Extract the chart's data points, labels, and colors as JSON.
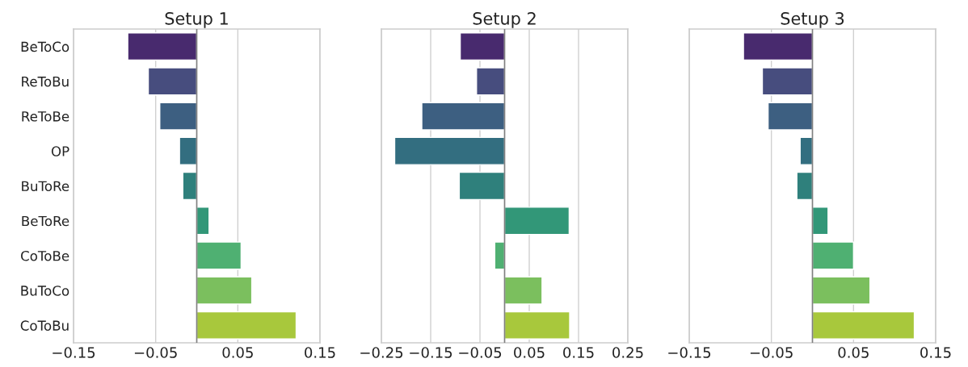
{
  "chart_data": [
    {
      "type": "bar",
      "orientation": "horizontal",
      "title": "Setup 1",
      "categories": [
        "BeToCo",
        "ReToBu",
        "ReToBe",
        "OP",
        "BuToRe",
        "BeToRe",
        "CoToBe",
        "BuToCo",
        "CoToBu"
      ],
      "values": [
        -0.084,
        -0.059,
        -0.045,
        -0.021,
        -0.017,
        0.015,
        0.054,
        0.067,
        0.121
      ],
      "colors": [
        "#482a6e",
        "#474d7e",
        "#3d5f81",
        "#336e80",
        "#2f807c",
        "#329778",
        "#4fb072",
        "#7bbf5e",
        "#a8c83c"
      ],
      "xlim": [
        -0.15,
        0.15
      ],
      "xticks": [
        -0.15,
        -0.05,
        0.05,
        0.15
      ],
      "grid": "x",
      "ref_lines": [
        {
          "axis": "x",
          "value": 0,
          "color": "#808080"
        }
      ]
    },
    {
      "type": "bar",
      "orientation": "horizontal",
      "title": "Setup 2",
      "categories": [
        null,
        null,
        null,
        null,
        null,
        null,
        null,
        null,
        null
      ],
      "values": [
        -0.09,
        -0.057,
        -0.168,
        -0.223,
        -0.092,
        0.131,
        -0.02,
        0.076,
        0.132
      ],
      "colors": [
        "#482a6e",
        "#474d7e",
        "#3d5f81",
        "#336e80",
        "#2f807c",
        "#329778",
        "#4fb072",
        "#7bbf5e",
        "#a8c83c"
      ],
      "xlim": [
        -0.25,
        0.25
      ],
      "xticks": [
        -0.25,
        -0.15,
        -0.05,
        0.05,
        0.15,
        0.25
      ],
      "grid": "x",
      "tick_labels": "x",
      "ref_lines": [
        {
          "axis": "x",
          "value": 0,
          "color": "#808080"
        }
      ]
    },
    {
      "type": "bar",
      "orientation": "horizontal",
      "title": "Setup 3",
      "categories": [
        null,
        null,
        null,
        null,
        null,
        null,
        null,
        null,
        null
      ],
      "values": [
        -0.084,
        -0.061,
        -0.054,
        -0.015,
        -0.019,
        0.019,
        0.05,
        0.07,
        0.124
      ],
      "colors": [
        "#482a6e",
        "#474d7e",
        "#3d5f81",
        "#336e80",
        "#2f807c",
        "#329778",
        "#4fb072",
        "#7bbf5e",
        "#a8c83c"
      ],
      "xlim": [
        -0.15,
        0.15
      ],
      "xticks": [
        -0.15,
        -0.05,
        0.05,
        0.15
      ],
      "grid": "x",
      "tick_labels": "x",
      "ref_lines": [
        {
          "axis": "x",
          "value": 0,
          "color": "#808080"
        }
      ]
    }
  ]
}
